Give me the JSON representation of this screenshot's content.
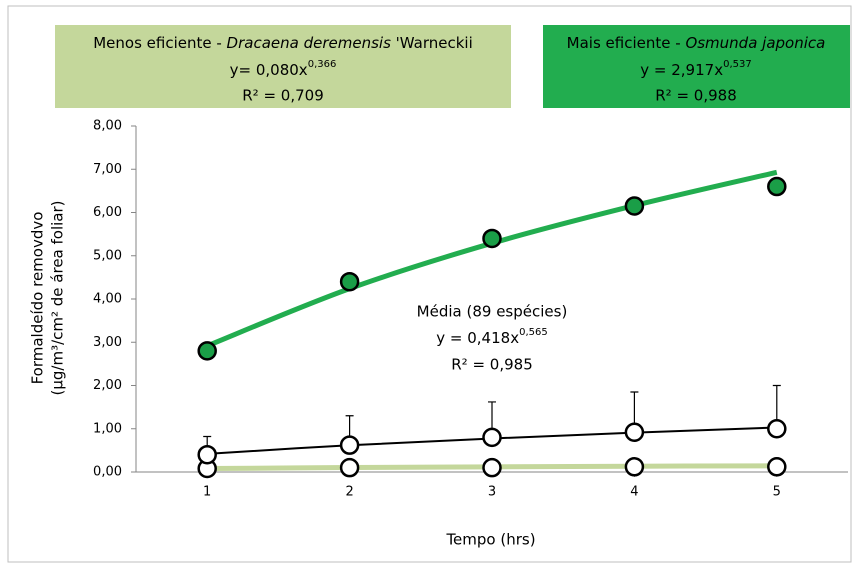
{
  "chart_data": {
    "type": "scatter",
    "x_label": "Tempo (hrs)",
    "y_label": [
      "Formaldeído removdvo",
      "(µg/m³/cm² de área foliar)"
    ],
    "x": [
      1,
      2,
      3,
      4,
      5
    ],
    "xlim": [
      0.5,
      5.5
    ],
    "xticks": [
      1,
      2,
      3,
      4,
      5
    ],
    "ylim": [
      0,
      8
    ],
    "yticks": [
      {
        "value": 0,
        "label": "0,00"
      },
      {
        "value": 1,
        "label": "1,00"
      },
      {
        "value": 2,
        "label": "2,00"
      },
      {
        "value": 3,
        "label": "3,00"
      },
      {
        "value": 4,
        "label": "4,00"
      },
      {
        "value": 5,
        "label": "5,00"
      },
      {
        "value": 6,
        "label": "6,00"
      },
      {
        "value": 7,
        "label": "7,00"
      },
      {
        "value": 8,
        "label": "8,00"
      }
    ],
    "series": [
      {
        "color": "#c4d79b",
        "marker_fill": "#ffffff",
        "values": [
          0.08,
          0.1,
          0.1,
          0.12,
          0.12
        ],
        "trend_values": [
          0.08,
          0.103,
          0.119,
          0.133,
          0.144
        ],
        "label": {
          "prefix": "Menos eficiente - ",
          "italic": "Dracaena deremensis",
          "suffix": " 'Warneckii",
          "equation": "y= 0,080x",
          "exponent": "0,366",
          "r2": "R² = 0,709"
        }
      },
      {
        "color": "#000000",
        "marker_fill": "#ffffff",
        "values": [
          0.4,
          0.62,
          0.8,
          0.92,
          1.0
        ],
        "errors": [
          0.42,
          0.68,
          0.82,
          0.93,
          1.0
        ],
        "trend_values": [
          0.418,
          0.619,
          0.775,
          0.909,
          1.03
        ],
        "label": {
          "prefix": "Média (89 espécies)",
          "equation": "y = 0,418x",
          "exponent": "0,565",
          "r2": "R² = 0,985"
        }
      },
      {
        "color": "#22ad4f",
        "marker_fill": "#1a9e47",
        "values": [
          2.8,
          4.4,
          5.4,
          6.15,
          6.6
        ],
        "trend_values": [
          2.917,
          4.24,
          5.29,
          6.16,
          6.93
        ],
        "label": {
          "prefix": "Mais eficiente - ",
          "italic": "Osmunda japonica",
          "equation": "y = 2,917x",
          "exponent": "0,537",
          "r2": "R² = 0,988"
        }
      }
    ]
  }
}
